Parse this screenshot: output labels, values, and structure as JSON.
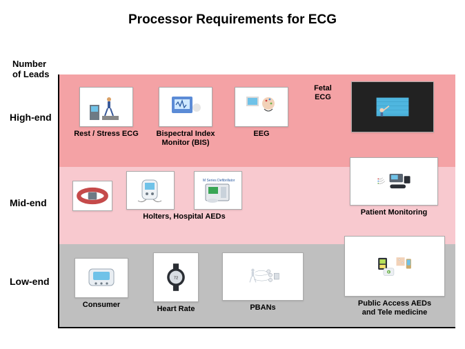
{
  "title": "Processor Requirements for ECG",
  "title_fontsize": 19,
  "y_axis_title": "Number\nof Leads",
  "bands": {
    "high": {
      "label": "High-end",
      "bg": "#f4a2a5"
    },
    "mid": {
      "label": "Mid-end",
      "bg": "#f8c9cf"
    },
    "low": {
      "label": "Low-end",
      "bg": "#bfbfbf"
    }
  },
  "items": {
    "rest_stress": {
      "label": "Rest / Stress ECG"
    },
    "bis": {
      "label": "Bispectral Index\nMonitor (BIS)"
    },
    "eeg": {
      "label": "EEG"
    },
    "fetal": {
      "label": "Fetal\nECG"
    },
    "fetal_screen": {
      "label": ""
    },
    "holters": {
      "label": "Holters,  Hospital AEDs"
    },
    "defib_tag": {
      "label": "M Series Defibrillator"
    },
    "patient_mon": {
      "label": "Patient Monitoring"
    },
    "consumer": {
      "label": "Consumer"
    },
    "heart_rate": {
      "label": "Heart Rate"
    },
    "pbans": {
      "label": "PBANs"
    },
    "public_aed": {
      "label": "Public Access  AEDs\nand Tele medicine"
    }
  },
  "colors": {
    "device_blue": "#5b8bd6",
    "device_gray": "#6e7a85",
    "device_dark": "#2b2f36",
    "screen": "#6fc2e8",
    "red": "#d04040",
    "strap": "#c54a4a",
    "watch": "#2a2e34",
    "card_bg": "#ffffff"
  }
}
